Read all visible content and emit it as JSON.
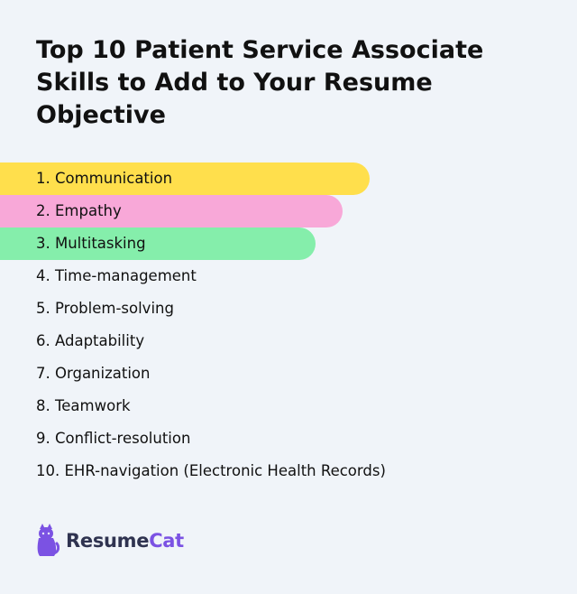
{
  "title": "Top 10 Patient Service Associate Skills to Add to Your Resume Objective",
  "skills": [
    {
      "label": "1. Communication",
      "highlight": "#ffdf4c"
    },
    {
      "label": "2. Empathy",
      "highlight": "#f8a8d8"
    },
    {
      "label": "3. Multitasking",
      "highlight": "#85eeab"
    },
    {
      "label": "4. Time-management"
    },
    {
      "label": "5. Problem-solving"
    },
    {
      "label": "6. Adaptability"
    },
    {
      "label": "7. Organization"
    },
    {
      "label": "8. Teamwork"
    },
    {
      "label": "9. Conflict-resolution"
    },
    {
      "label": "10. EHR-navigation (Electronic Health Records)"
    }
  ],
  "logo": {
    "icon": "cat-icon",
    "text_part1": "Resume",
    "text_part2": "Cat",
    "colors": {
      "primary": "#2f3350",
      "accent": "#7b52e3"
    }
  }
}
